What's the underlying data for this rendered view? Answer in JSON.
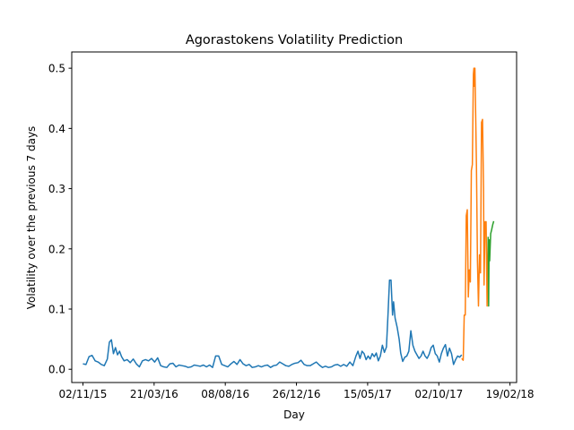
{
  "chart_data": {
    "type": "line",
    "title": "Agorastokens Volatility Prediction",
    "xlabel": "Day",
    "ylabel": "Volatility over the previous 7 days",
    "xlim": [
      "2015-10-11",
      "2018-03-04"
    ],
    "ylim": [
      -0.022,
      0.527
    ],
    "x_ticks": [
      {
        "date": "2015-11-02",
        "label": "02/11/15"
      },
      {
        "date": "2016-03-21",
        "label": "21/03/16"
      },
      {
        "date": "2016-08-08",
        "label": "08/08/16"
      },
      {
        "date": "2016-12-26",
        "label": "26/12/16"
      },
      {
        "date": "2017-05-15",
        "label": "15/05/17"
      },
      {
        "date": "2017-10-02",
        "label": "02/10/17"
      },
      {
        "date": "2018-02-19",
        "label": "19/02/18"
      }
    ],
    "y_ticks": [
      0.0,
      0.1,
      0.2,
      0.3,
      0.4,
      0.5
    ],
    "y_tick_labels": [
      "0.0",
      "0.1",
      "0.2",
      "0.3",
      "0.4",
      "0.5"
    ],
    "grid": false,
    "legend": false,
    "series": [
      {
        "color": "#1f77b4",
        "points": [
          [
            "2015-11-02",
            0.009
          ],
          [
            "2015-11-08",
            0.008
          ],
          [
            "2015-11-14",
            0.021
          ],
          [
            "2015-11-20",
            0.023
          ],
          [
            "2015-11-26",
            0.014
          ],
          [
            "2015-12-02",
            0.012
          ],
          [
            "2015-12-08",
            0.008
          ],
          [
            "2015-12-14",
            0.006
          ],
          [
            "2015-12-20",
            0.017
          ],
          [
            "2015-12-24",
            0.045
          ],
          [
            "2015-12-28",
            0.049
          ],
          [
            "2016-01-01",
            0.026
          ],
          [
            "2016-01-05",
            0.036
          ],
          [
            "2016-01-09",
            0.024
          ],
          [
            "2016-01-13",
            0.03
          ],
          [
            "2016-01-17",
            0.021
          ],
          [
            "2016-01-22",
            0.014
          ],
          [
            "2016-01-28",
            0.016
          ],
          [
            "2016-02-03",
            0.011
          ],
          [
            "2016-02-09",
            0.017
          ],
          [
            "2016-02-15",
            0.009
          ],
          [
            "2016-02-21",
            0.004
          ],
          [
            "2016-02-27",
            0.014
          ],
          [
            "2016-03-04",
            0.016
          ],
          [
            "2016-03-10",
            0.014
          ],
          [
            "2016-03-16",
            0.018
          ],
          [
            "2016-03-22",
            0.012
          ],
          [
            "2016-03-28",
            0.019
          ],
          [
            "2016-04-03",
            0.006
          ],
          [
            "2016-04-09",
            0.004
          ],
          [
            "2016-04-15",
            0.003
          ],
          [
            "2016-04-21",
            0.009
          ],
          [
            "2016-04-27",
            0.01
          ],
          [
            "2016-05-03",
            0.004
          ],
          [
            "2016-05-09",
            0.007
          ],
          [
            "2016-05-15",
            0.006
          ],
          [
            "2016-05-21",
            0.005
          ],
          [
            "2016-05-27",
            0.003
          ],
          [
            "2016-06-02",
            0.004
          ],
          [
            "2016-06-08",
            0.007
          ],
          [
            "2016-06-14",
            0.006
          ],
          [
            "2016-06-20",
            0.005
          ],
          [
            "2016-06-26",
            0.007
          ],
          [
            "2016-07-02",
            0.004
          ],
          [
            "2016-07-08",
            0.007
          ],
          [
            "2016-07-14",
            0.003
          ],
          [
            "2016-07-20",
            0.022
          ],
          [
            "2016-07-26",
            0.022
          ],
          [
            "2016-08-01",
            0.008
          ],
          [
            "2016-08-07",
            0.006
          ],
          [
            "2016-08-13",
            0.004
          ],
          [
            "2016-08-19",
            0.009
          ],
          [
            "2016-08-25",
            0.013
          ],
          [
            "2016-08-31",
            0.008
          ],
          [
            "2016-09-06",
            0.016
          ],
          [
            "2016-09-12",
            0.009
          ],
          [
            "2016-09-18",
            0.006
          ],
          [
            "2016-09-24",
            0.008
          ],
          [
            "2016-09-30",
            0.003
          ],
          [
            "2016-10-06",
            0.004
          ],
          [
            "2016-10-12",
            0.006
          ],
          [
            "2016-10-18",
            0.004
          ],
          [
            "2016-10-24",
            0.006
          ],
          [
            "2016-10-30",
            0.007
          ],
          [
            "2016-11-05",
            0.003
          ],
          [
            "2016-11-11",
            0.006
          ],
          [
            "2016-11-17",
            0.007
          ],
          [
            "2016-11-23",
            0.012
          ],
          [
            "2016-11-29",
            0.009
          ],
          [
            "2016-12-05",
            0.006
          ],
          [
            "2016-12-11",
            0.005
          ],
          [
            "2016-12-17",
            0.008
          ],
          [
            "2016-12-23",
            0.01
          ],
          [
            "2016-12-29",
            0.011
          ],
          [
            "2017-01-04",
            0.015
          ],
          [
            "2017-01-10",
            0.008
          ],
          [
            "2017-01-16",
            0.006
          ],
          [
            "2017-01-22",
            0.006
          ],
          [
            "2017-01-28",
            0.009
          ],
          [
            "2017-02-03",
            0.012
          ],
          [
            "2017-02-09",
            0.007
          ],
          [
            "2017-02-15",
            0.003
          ],
          [
            "2017-02-21",
            0.005
          ],
          [
            "2017-02-27",
            0.003
          ],
          [
            "2017-03-05",
            0.004
          ],
          [
            "2017-03-11",
            0.007
          ],
          [
            "2017-03-17",
            0.008
          ],
          [
            "2017-03-23",
            0.005
          ],
          [
            "2017-03-29",
            0.008
          ],
          [
            "2017-04-04",
            0.005
          ],
          [
            "2017-04-10",
            0.012
          ],
          [
            "2017-04-16",
            0.006
          ],
          [
            "2017-04-22",
            0.022
          ],
          [
            "2017-04-26",
            0.03
          ],
          [
            "2017-04-30",
            0.018
          ],
          [
            "2017-05-04",
            0.03
          ],
          [
            "2017-05-08",
            0.026
          ],
          [
            "2017-05-12",
            0.016
          ],
          [
            "2017-05-16",
            0.022
          ],
          [
            "2017-05-20",
            0.017
          ],
          [
            "2017-05-24",
            0.026
          ],
          [
            "2017-05-28",
            0.021
          ],
          [
            "2017-06-01",
            0.027
          ],
          [
            "2017-06-05",
            0.014
          ],
          [
            "2017-06-09",
            0.022
          ],
          [
            "2017-06-13",
            0.04
          ],
          [
            "2017-06-17",
            0.028
          ],
          [
            "2017-06-21",
            0.037
          ],
          [
            "2017-06-24",
            0.09
          ],
          [
            "2017-06-27",
            0.148
          ],
          [
            "2017-06-30",
            0.148
          ],
          [
            "2017-07-03",
            0.09
          ],
          [
            "2017-07-05",
            0.112
          ],
          [
            "2017-07-08",
            0.085
          ],
          [
            "2017-07-12",
            0.07
          ],
          [
            "2017-07-16",
            0.05
          ],
          [
            "2017-07-19",
            0.027
          ],
          [
            "2017-07-23",
            0.013
          ],
          [
            "2017-07-27",
            0.02
          ],
          [
            "2017-07-31",
            0.022
          ],
          [
            "2017-08-04",
            0.03
          ],
          [
            "2017-08-08",
            0.064
          ],
          [
            "2017-08-12",
            0.04
          ],
          [
            "2017-08-16",
            0.03
          ],
          [
            "2017-08-20",
            0.024
          ],
          [
            "2017-08-24",
            0.018
          ],
          [
            "2017-08-28",
            0.022
          ],
          [
            "2017-09-01",
            0.03
          ],
          [
            "2017-09-05",
            0.022
          ],
          [
            "2017-09-09",
            0.018
          ],
          [
            "2017-09-13",
            0.025
          ],
          [
            "2017-09-17",
            0.036
          ],
          [
            "2017-09-21",
            0.04
          ],
          [
            "2017-09-25",
            0.026
          ],
          [
            "2017-09-29",
            0.022
          ],
          [
            "2017-10-03",
            0.012
          ],
          [
            "2017-10-07",
            0.026
          ],
          [
            "2017-10-11",
            0.035
          ],
          [
            "2017-10-15",
            0.041
          ],
          [
            "2017-10-19",
            0.022
          ],
          [
            "2017-10-23",
            0.035
          ],
          [
            "2017-10-27",
            0.026
          ],
          [
            "2017-10-31",
            0.008
          ],
          [
            "2017-11-04",
            0.016
          ],
          [
            "2017-11-08",
            0.022
          ],
          [
            "2017-11-12",
            0.02
          ],
          [
            "2017-11-16",
            0.024
          ]
        ]
      },
      {
        "color": "#ff7f0e",
        "points": [
          [
            "2017-11-16",
            0.018
          ],
          [
            "2017-11-19",
            0.015
          ],
          [
            "2017-11-21",
            0.09
          ],
          [
            "2017-11-23",
            0.09
          ],
          [
            "2017-11-25",
            0.255
          ],
          [
            "2017-11-27",
            0.265
          ],
          [
            "2017-11-29",
            0.12
          ],
          [
            "2017-12-01",
            0.165
          ],
          [
            "2017-12-03",
            0.145
          ],
          [
            "2017-12-05",
            0.33
          ],
          [
            "2017-12-07",
            0.34
          ],
          [
            "2017-12-09",
            0.49
          ],
          [
            "2017-12-10",
            0.5
          ],
          [
            "2017-12-11",
            0.47
          ],
          [
            "2017-12-12",
            0.5
          ],
          [
            "2017-12-13",
            0.45
          ],
          [
            "2017-12-15",
            0.34
          ],
          [
            "2017-12-17",
            0.18
          ],
          [
            "2017-12-19",
            0.105
          ],
          [
            "2017-12-21",
            0.19
          ],
          [
            "2017-12-23",
            0.16
          ],
          [
            "2017-12-25",
            0.41
          ],
          [
            "2017-12-27",
            0.415
          ],
          [
            "2017-12-29",
            0.3
          ],
          [
            "2017-12-30",
            0.14
          ],
          [
            "2018-01-01",
            0.245
          ],
          [
            "2018-01-03",
            0.245
          ],
          [
            "2018-01-05",
            0.105
          ],
          [
            "2018-01-07",
            0.22
          ]
        ]
      },
      {
        "color": "#2ca02c",
        "points": [
          [
            "2018-01-07",
            0.22
          ],
          [
            "2018-01-08",
            0.105
          ],
          [
            "2018-01-09",
            0.215
          ],
          [
            "2018-01-10",
            0.18
          ],
          [
            "2018-01-12",
            0.225
          ],
          [
            "2018-01-14",
            0.232
          ],
          [
            "2018-01-16",
            0.24
          ],
          [
            "2018-01-18",
            0.246
          ]
        ]
      }
    ]
  }
}
